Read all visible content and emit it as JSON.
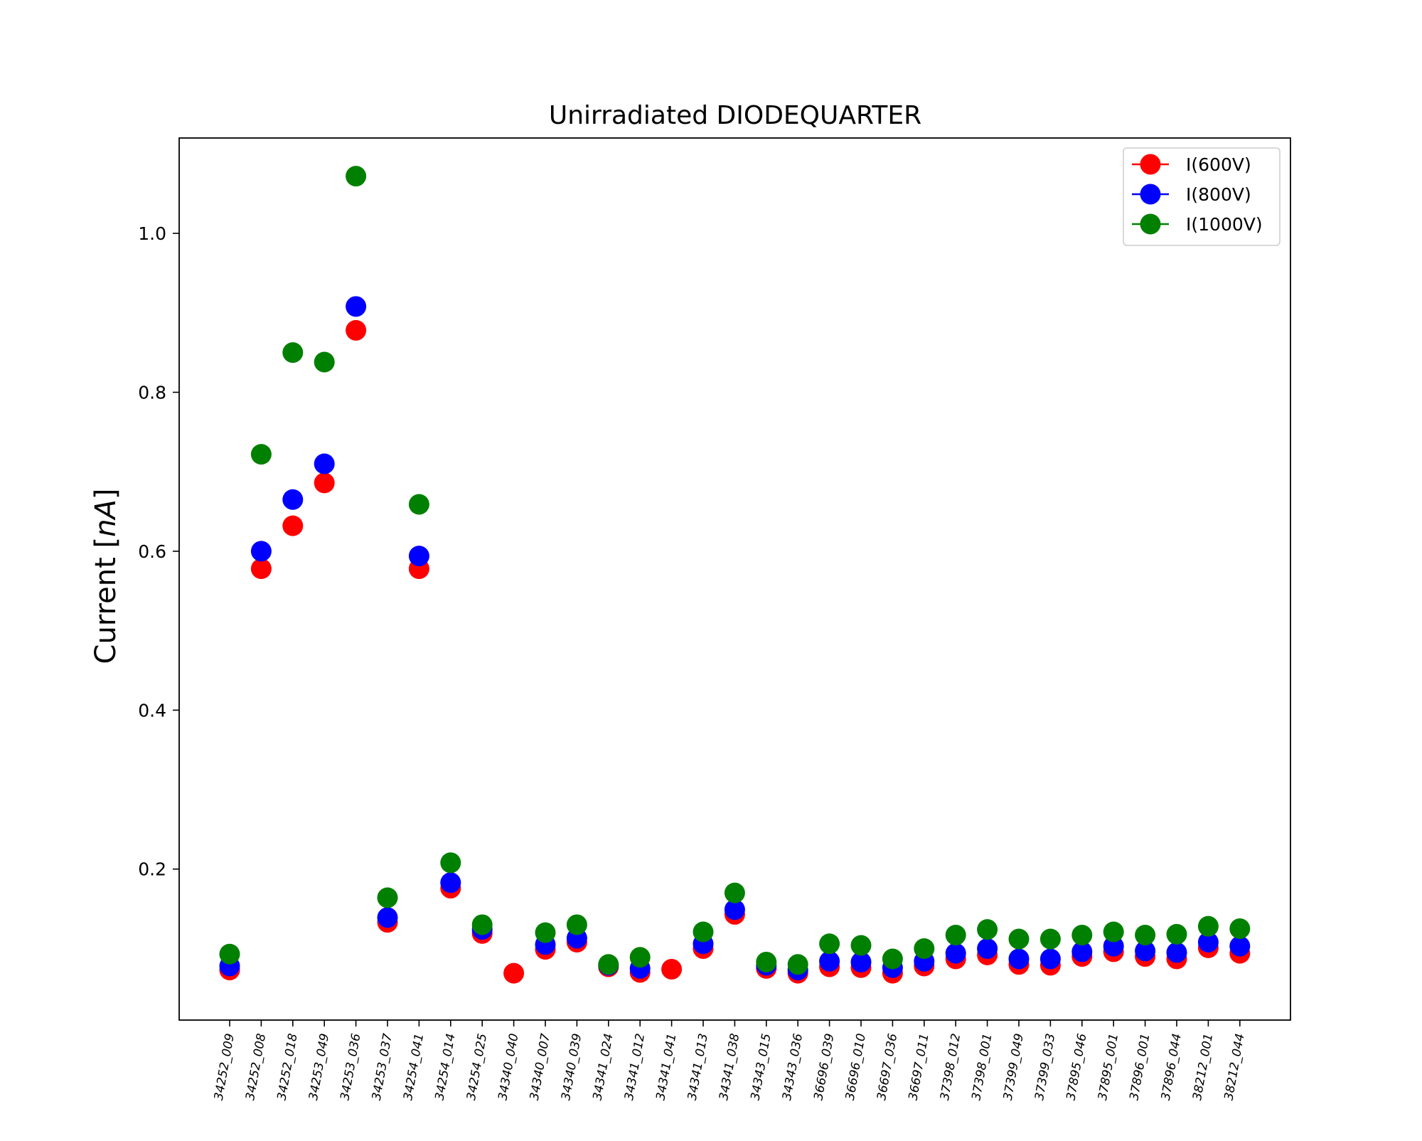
{
  "chart_data": {
    "type": "scatter",
    "title": "Unirradiated DIODEQUARTER",
    "xlabel": "",
    "ylabel_text": "Current [",
    "ylabel_unit": "nA",
    "ylabel_close": "]",
    "ylim": [
      0.01,
      1.12
    ],
    "yticks": [
      0.2,
      0.4,
      0.6,
      0.8,
      1.0
    ],
    "ytick_labels": [
      "0.2",
      "0.4",
      "0.6",
      "0.8",
      "1.0"
    ],
    "legend_position": "top-right",
    "grid": false,
    "categories": [
      "34252_009",
      "34252_008",
      "34252_018",
      "34253_049",
      "34253_036",
      "34253_037",
      "34254_041",
      "34254_014",
      "34254_025",
      "34340_040",
      "34340_007",
      "34340_039",
      "34341_024",
      "34341_012",
      "34341_041",
      "34341_013",
      "34341_038",
      "34343_015",
      "34343_036",
      "36696_039",
      "36696_010",
      "36697_036",
      "36697_011",
      "37398_012",
      "37398_001",
      "37399_049",
      "37399_033",
      "37895_046",
      "37895_001",
      "37896_001",
      "37896_044",
      "38212_001",
      "38212_044"
    ],
    "series": [
      {
        "name": "I(600V)",
        "color": "#ff0000",
        "values": [
          0.073,
          0.578,
          0.632,
          0.686,
          0.878,
          0.133,
          0.578,
          0.176,
          0.119,
          0.069,
          0.099,
          0.108,
          0.077,
          0.07,
          0.074,
          0.1,
          0.143,
          0.075,
          0.069,
          0.077,
          0.076,
          0.069,
          0.078,
          0.087,
          0.092,
          0.08,
          0.079,
          0.09,
          0.096,
          0.09,
          0.087,
          0.101,
          0.094
        ]
      },
      {
        "name": "I(800V)",
        "color": "#0000ff",
        "values": [
          0.078,
          0.6,
          0.665,
          0.71,
          0.908,
          0.139,
          0.594,
          0.183,
          0.124,
          null,
          0.105,
          0.113,
          0.079,
          0.075,
          null,
          0.106,
          0.149,
          0.079,
          0.073,
          0.084,
          0.083,
          0.076,
          0.084,
          0.094,
          0.1,
          0.087,
          0.087,
          0.096,
          0.103,
          0.097,
          0.095,
          0.108,
          0.103
        ]
      },
      {
        "name": "I(1000V)",
        "color": "#008000",
        "values": [
          0.093,
          0.722,
          0.85,
          0.838,
          1.072,
          0.164,
          0.659,
          0.208,
          0.13,
          null,
          0.12,
          0.13,
          0.08,
          0.089,
          null,
          0.121,
          0.17,
          0.083,
          0.08,
          0.106,
          0.104,
          0.087,
          0.1,
          0.117,
          0.124,
          0.112,
          0.112,
          0.117,
          0.121,
          0.117,
          0.118,
          0.128,
          0.125
        ]
      }
    ]
  }
}
